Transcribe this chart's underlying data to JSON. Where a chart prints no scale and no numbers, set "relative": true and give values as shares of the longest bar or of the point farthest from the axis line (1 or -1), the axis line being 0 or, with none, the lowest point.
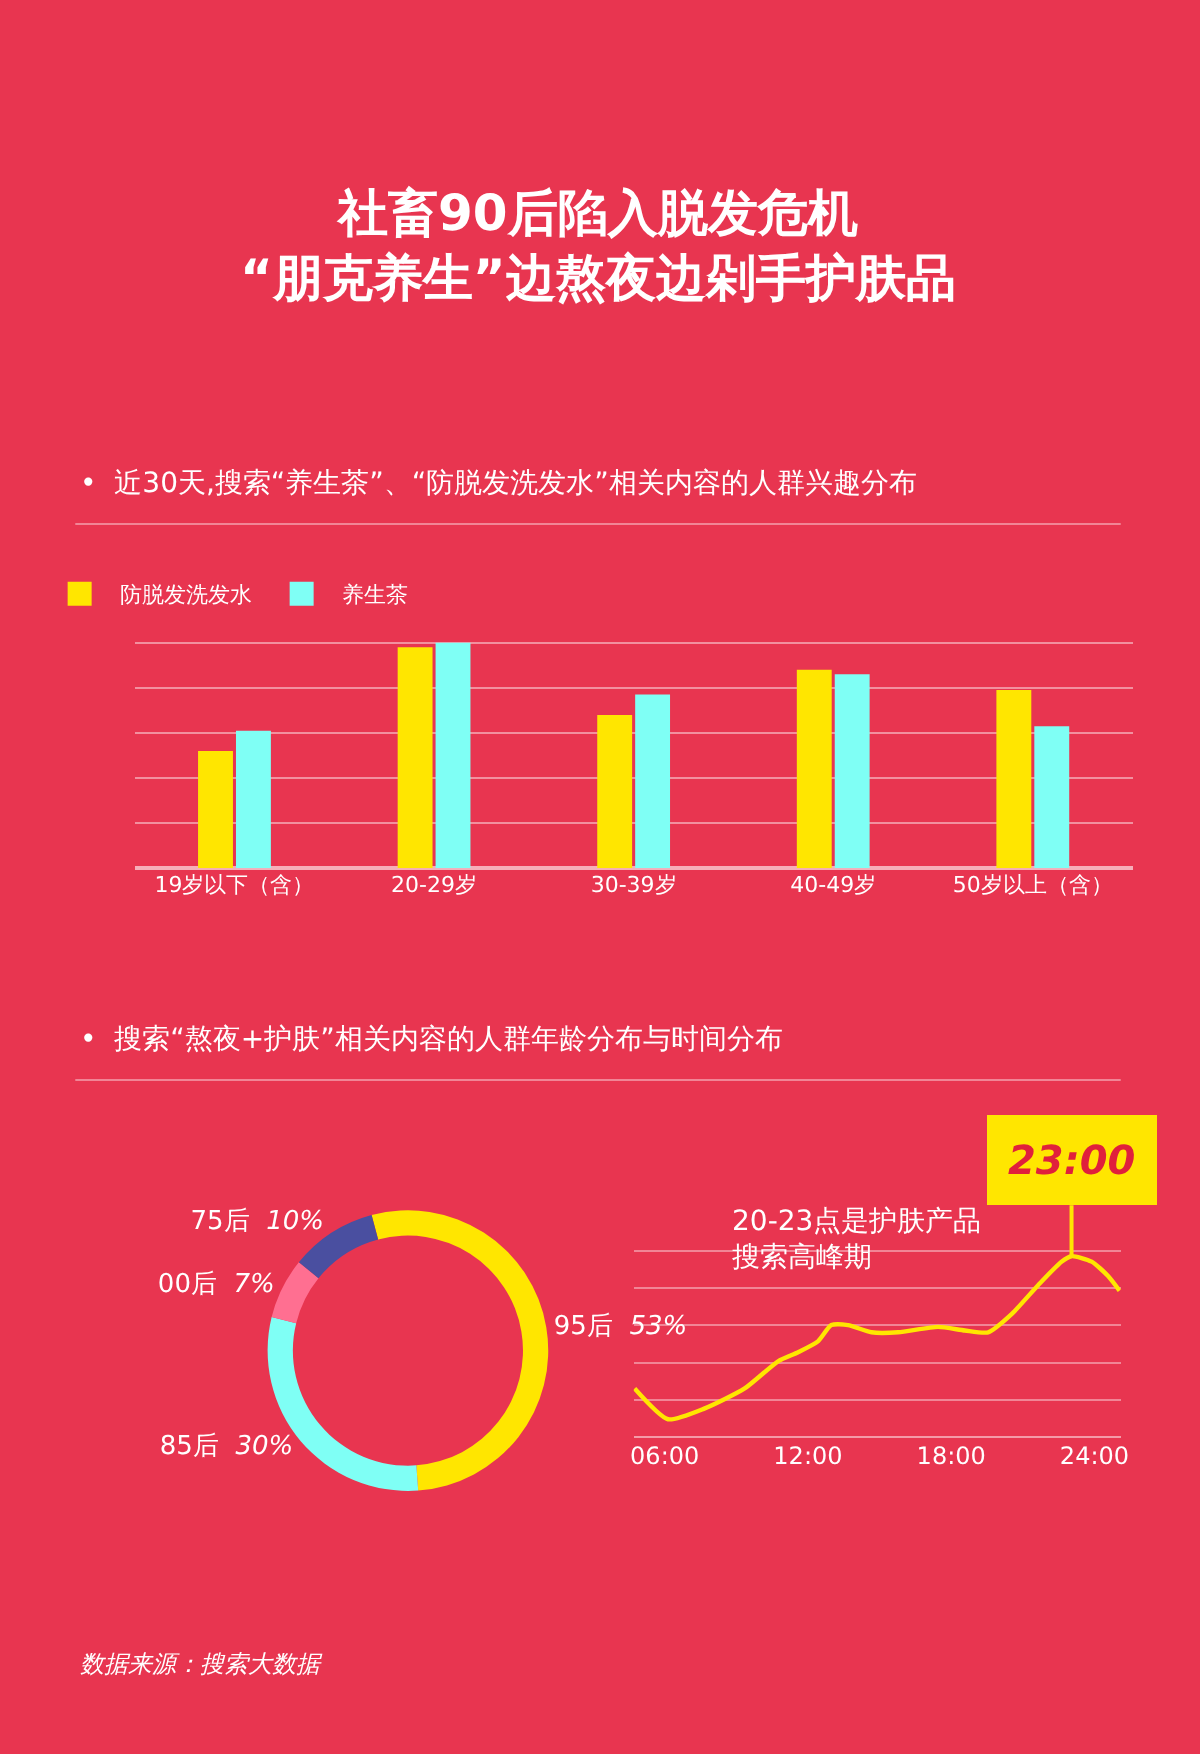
{
  "chart_data": [
    {
      "type": "bar",
      "title": "社畜90后陷入脱发危机\n“朋克养生”边熬夜边剁手护肤品",
      "subtitle": "•  近30天,搜索“养生茶”、“防脱发洗发水”相关内容的人群兴趣分布",
      "categories": [
        "19岁以下（含）",
        "20-29岁",
        "30-39岁",
        "40-49岁",
        "50岁以上（含）"
      ],
      "relative": true,
      "grid": "y",
      "legend": "top left",
      "series": [
        {
          "name": "防脱发洗发水",
          "color": "#ffe600",
          "values": [
            0.52,
            0.98,
            0.68,
            0.88,
            0.79
          ]
        },
        {
          "name": "养生茶",
          "color": "#7ffff5",
          "values": [
            0.61,
            1.0,
            0.77,
            0.86,
            0.63
          ]
        }
      ]
    },
    {
      "type": "donut",
      "title": "•  搜索“熬夜+护肤”相关内容的人群年龄分布与时间分布",
      "categories": [
        "95后",
        "85后",
        "00后",
        "75后"
      ],
      "values": [
        53,
        30,
        7,
        10
      ],
      "colors": [
        "#ffe600",
        "#7ffff5",
        "#ff6f91",
        "#4a4fa0"
      ],
      "value_labels": [
        "53%",
        "30%",
        "7%",
        "10%"
      ]
    },
    {
      "type": "line",
      "relative": true,
      "grid": "y",
      "tick_labels": "x",
      "xlim": [
        4.7,
        25.1
      ],
      "xticks": [
        {
          "value": 6,
          "label": "06:00"
        },
        {
          "value": 12,
          "label": "12:00"
        },
        {
          "value": 18,
          "label": "18:00"
        },
        {
          "value": 24,
          "label": "24:00"
        }
      ],
      "series": [
        {
          "color": "#ffe600",
          "x": [
            4.74,
            6.14,
            7.68,
            9.35,
            10.75,
            11.59,
            12.42,
            12.98,
            13.68,
            14.66,
            15.78,
            17.45,
            18.57,
            19.55,
            20.53,
            21.64,
            22.62,
            23.04,
            23.88,
            24.58,
            25.05
          ],
          "values": [
            0.27,
            0.1,
            0.16,
            0.27,
            0.42,
            0.47,
            0.53,
            0.62,
            0.62,
            0.58,
            0.58,
            0.61,
            0.59,
            0.58,
            0.68,
            0.84,
            0.97,
            1.0,
            0.97,
            0.89,
            0.81
          ]
        }
      ],
      "annotations": [
        {
          "text": "23:00",
          "x": 23.04,
          "y": 1.0
        },
        "20-23点是护肤产品搜索高峰期",
        "数据来源：搜索大数据"
      ]
    }
  ]
}
